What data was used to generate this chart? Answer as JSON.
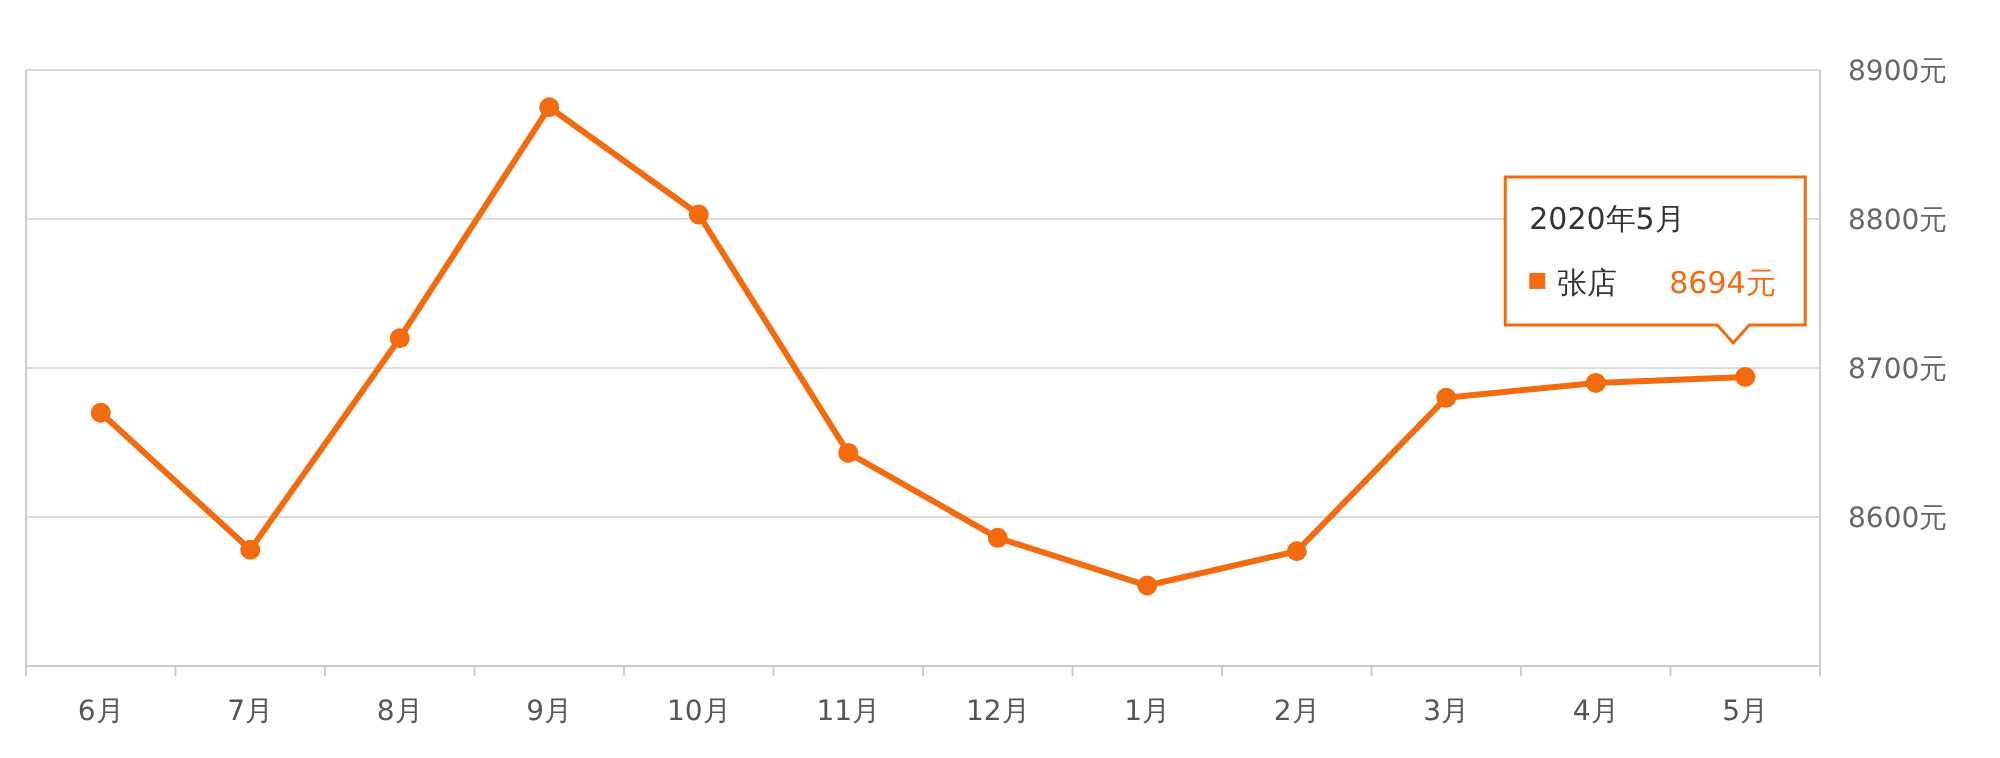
{
  "chart_data": {
    "type": "line",
    "categories": [
      "6月",
      "7月",
      "8月",
      "9月",
      "10月",
      "11月",
      "12月",
      "1月",
      "2月",
      "3月",
      "4月",
      "5月"
    ],
    "series": [
      {
        "name": "张店",
        "color": "#f26b0f",
        "values": [
          8670,
          8578,
          8720,
          8875,
          8803,
          8643,
          8586,
          8554,
          8577,
          8680,
          8690,
          8694
        ],
        "value_labels": [
          null,
          null,
          null,
          null,
          null,
          null,
          null,
          null,
          null,
          null,
          null,
          "8694元"
        ]
      }
    ],
    "annotations": [
      "2020年5月"
    ],
    "ylim": [
      8500,
      8900
    ],
    "yticks": [
      {
        "value": 8600,
        "label": "8600元"
      },
      {
        "value": 8700,
        "label": "8700元"
      },
      {
        "value": 8800,
        "label": "8800元"
      },
      {
        "value": 8900,
        "label": "8900元"
      }
    ],
    "grid": "y",
    "marker": "circle",
    "line_style": "solid"
  }
}
